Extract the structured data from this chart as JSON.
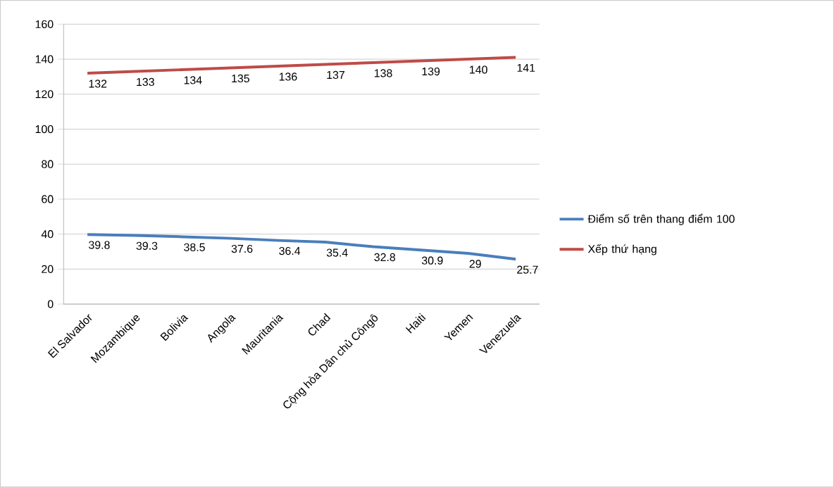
{
  "chart_data": {
    "type": "line",
    "categories": [
      "El Salvador",
      "Mozambique",
      "Bolivia",
      "Angola",
      "Mauritania",
      "Chad",
      "Cộng hòa Dân chủ Côngô",
      "Haiti",
      "Yemen",
      "Venezuela"
    ],
    "series": [
      {
        "name": "Điểm số trên thang điểm 100",
        "color": "#4a7ebb",
        "values": [
          39.8,
          39.3,
          38.5,
          37.6,
          36.4,
          35.4,
          32.8,
          30.9,
          29,
          25.7
        ]
      },
      {
        "name": "Xếp thứ hạng",
        "color": "#be4b48",
        "values": [
          132,
          133,
          134,
          135,
          136,
          137,
          138,
          139,
          140,
          141
        ]
      }
    ],
    "ylim": [
      0,
      160
    ],
    "yticks": [
      0,
      20,
      40,
      60,
      80,
      100,
      120,
      140,
      160
    ],
    "grid": "y",
    "legend": "right",
    "marker": "none",
    "line_style": "solid",
    "data_labels": true
  }
}
